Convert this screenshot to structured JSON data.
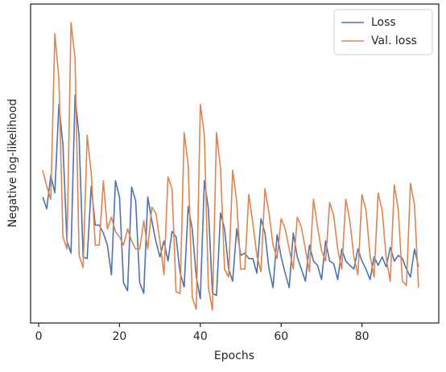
{
  "chart_data": {
    "type": "line",
    "xlabel": "Epochs",
    "ylabel": "Negative log-likelihood",
    "x": [
      1,
      2,
      3,
      4,
      5,
      6,
      7,
      8,
      9,
      10,
      11,
      12,
      13,
      14,
      15,
      16,
      17,
      18,
      19,
      20,
      21,
      22,
      23,
      24,
      25,
      26,
      27,
      28,
      29,
      30,
      31,
      32,
      33,
      34,
      35,
      36,
      37,
      38,
      39,
      40,
      41,
      42,
      43,
      44,
      45,
      46,
      47,
      48,
      49,
      50,
      51,
      52,
      53,
      54,
      55,
      56,
      57,
      58,
      59,
      60,
      61,
      62,
      63,
      64,
      65,
      66,
      67,
      68,
      69,
      70,
      71,
      72,
      73,
      74,
      75,
      76,
      77,
      78,
      79,
      80,
      81,
      82,
      83,
      84,
      85,
      86,
      87,
      88,
      89,
      90,
      91,
      92,
      93,
      94
    ],
    "series": [
      {
        "name": "Loss",
        "color": "#4c72b0",
        "values": [
          39.5,
          35.8,
          46.3,
          40.8,
          68.5,
          55.9,
          25.7,
          21.9,
          71.5,
          58.4,
          20.7,
          20.2,
          42.8,
          30.7,
          30.7,
          28.2,
          24.4,
          15.1,
          44.6,
          39.5,
          12.6,
          10.1,
          42.6,
          38.3,
          12.6,
          9.3,
          39.5,
          32.0,
          25.7,
          20.7,
          25.7,
          19.4,
          28.7,
          27.0,
          15.6,
          11.3,
          36.5,
          29.5,
          14.4,
          7.6,
          44.6,
          35.8,
          9.3,
          8.6,
          34.5,
          29.5,
          16.9,
          13.1,
          29.5,
          21.2,
          21.9,
          20.2,
          20.2,
          15.6,
          32.7,
          28.2,
          16.9,
          11.1,
          27.7,
          20.7,
          15.6,
          11.1,
          28.2,
          20.7,
          16.9,
          13.1,
          24.4,
          19.4,
          18.1,
          13.6,
          25.7,
          19.4,
          18.6,
          13.6,
          23.2,
          19.4,
          18.1,
          16.9,
          23.2,
          19.4,
          16.9,
          13.6,
          20.7,
          18.1,
          20.7,
          17.6,
          23.7,
          19.4,
          21.2,
          20.2,
          16.9,
          14.4,
          23.2,
          17.6
        ]
      },
      {
        "name": "Val. loss",
        "color": "#dd8452",
        "values": [
          47.9,
          42.8,
          38.8,
          90.7,
          76.6,
          27.0,
          23.2,
          94.2,
          83.1,
          21.2,
          17.4,
          58.9,
          47.1,
          24.4,
          24.4,
          44.6,
          29.5,
          33.2,
          28.7,
          27.0,
          24.4,
          29.5,
          25.7,
          23.2,
          23.2,
          32.0,
          23.2,
          36.3,
          34.5,
          25.7,
          15.1,
          45.8,
          42.1,
          9.8,
          9.3,
          59.7,
          49.6,
          8.1,
          4.3,
          68.5,
          58.9,
          11.1,
          4.0,
          59.7,
          48.4,
          16.9,
          14.4,
          47.9,
          38.3,
          16.9,
          16.9,
          40.3,
          31.2,
          21.2,
          16.1,
          42.1,
          34.5,
          24.4,
          20.2,
          32.7,
          29.5,
          23.2,
          16.9,
          33.2,
          30.0,
          23.2,
          16.1,
          38.8,
          30.2,
          22.7,
          19.4,
          37.8,
          33.8,
          23.2,
          16.9,
          38.8,
          32.0,
          20.7,
          15.1,
          40.3,
          35.3,
          21.2,
          14.4,
          40.8,
          35.3,
          20.2,
          13.1,
          43.3,
          35.3,
          13.1,
          11.8,
          43.8,
          37.0,
          11.1
        ]
      }
    ],
    "xlim": [
      -2,
      99
    ],
    "xticks": [
      0,
      20,
      40,
      60,
      80
    ],
    "ylim": [
      0,
      100
    ],
    "legend": "upper right"
  }
}
